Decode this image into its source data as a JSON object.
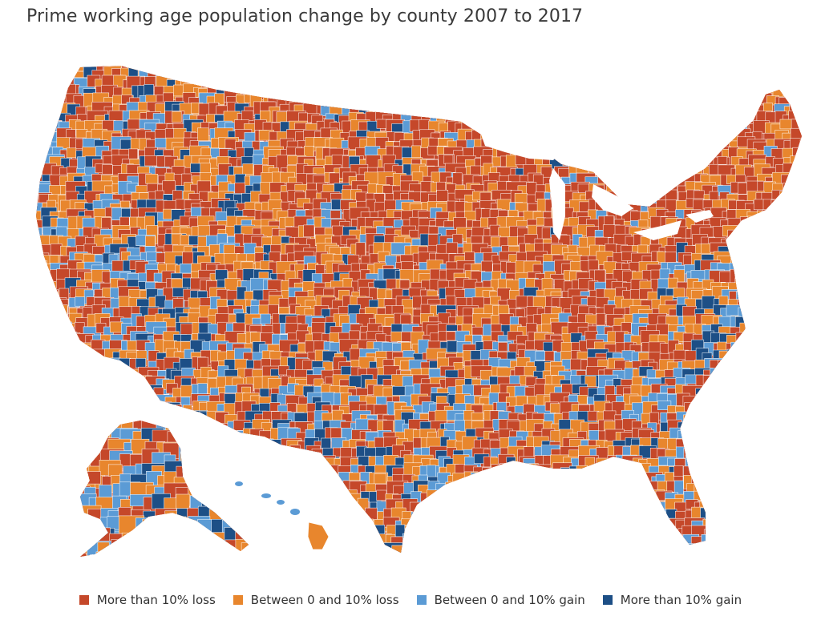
{
  "title": "Prime working age population change by county 2007 to 2017",
  "colors": {
    "loss_gt10": "#c5482a",
    "loss_0_10": "#e8862d",
    "gain_0_10": "#5b9bd5",
    "gain_gt10": "#1d4f86"
  },
  "legend": [
    {
      "label": "More than 10% loss",
      "color": "#c5482a"
    },
    {
      "label": "Between 0 and 10% loss",
      "color": "#e8862d"
    },
    {
      "label": "Between 0 and 10% gain",
      "color": "#5b9bd5"
    },
    {
      "label": "More than 10% gain",
      "color": "#1d4f86"
    }
  ]
}
